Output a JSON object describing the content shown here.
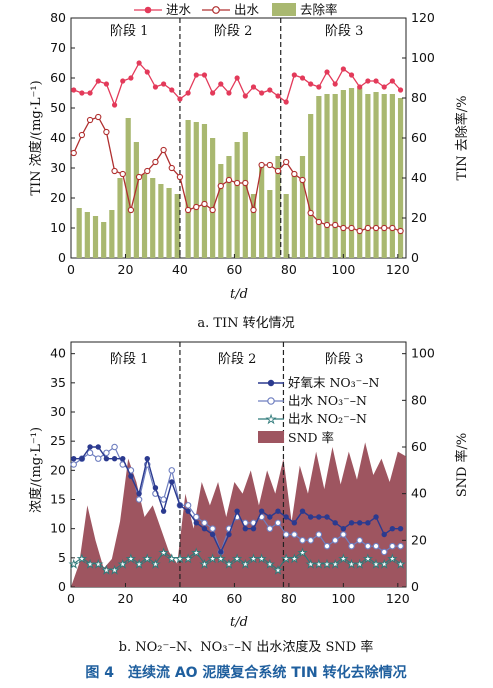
{
  "figure_caption": "图 4　连续流 AO 泥膜复合系统 TIN 转化去除情况",
  "chart_data": [
    {
      "type": "bar",
      "caption": "a. TIN 转化情况",
      "xlabel": "t/d",
      "ylabel_left": "TIN 浓度/(mg·L⁻¹)",
      "ylabel_right": "TIN 去除率/%",
      "xlim": [
        0,
        123
      ],
      "ylim_left": [
        0,
        80
      ],
      "ylim_right": [
        0,
        120
      ],
      "xticks": [
        0,
        20,
        40,
        60,
        80,
        100,
        120
      ],
      "yticks_left": [
        0,
        10,
        20,
        30,
        40,
        50,
        60,
        70,
        80
      ],
      "yticks_right": [
        0,
        20,
        40,
        60,
        80,
        100,
        120
      ],
      "phases": [
        "阶段 1",
        "阶段 2",
        "阶段 3"
      ],
      "phase_boundaries": [
        40,
        77
      ],
      "legend_position": "top",
      "colors": {
        "influent": "#e33a5a",
        "effluent": "#b03030",
        "removal": "#a9b870"
      },
      "series": [
        {
          "name": "进水",
          "kind": "line",
          "axis": "left",
          "x": [
            1,
            4,
            7,
            10,
            13,
            16,
            19,
            22,
            25,
            28,
            31,
            34,
            37,
            40,
            43,
            46,
            49,
            52,
            55,
            58,
            61,
            64,
            67,
            70,
            73,
            76,
            79,
            82,
            85,
            88,
            91,
            94,
            97,
            100,
            103,
            106,
            109,
            112,
            115,
            118,
            121
          ],
          "y": [
            56,
            55,
            55,
            59,
            58,
            51,
            59,
            60,
            65,
            62,
            57,
            58,
            56,
            53,
            55,
            61,
            61,
            55,
            58,
            55,
            60,
            54,
            57,
            55,
            56,
            54,
            52,
            61,
            60,
            58,
            57,
            62,
            58,
            63,
            61,
            57,
            59,
            59,
            57,
            59,
            56
          ]
        },
        {
          "name": "出水",
          "kind": "line",
          "axis": "left",
          "x": [
            1,
            4,
            7,
            10,
            13,
            16,
            19,
            22,
            25,
            28,
            31,
            34,
            37,
            40,
            43,
            46,
            49,
            52,
            55,
            58,
            61,
            64,
            67,
            70,
            73,
            76,
            79,
            82,
            85,
            88,
            91,
            94,
            97,
            100,
            103,
            106,
            109,
            112,
            115,
            118,
            121
          ],
          "y": [
            35,
            41,
            46,
            47,
            42,
            29,
            28,
            16,
            27,
            29,
            32,
            36,
            30,
            27,
            16,
            17,
            18,
            16,
            24,
            26,
            25,
            25,
            16,
            31,
            31,
            29,
            32,
            28,
            26,
            15,
            12,
            11,
            11,
            10,
            10,
            9,
            10,
            10,
            10,
            10,
            9
          ]
        },
        {
          "name": "去除率",
          "kind": "bar",
          "axis": "right",
          "x": [
            3,
            6,
            9,
            12,
            15,
            18,
            21,
            24,
            27,
            30,
            33,
            36,
            39,
            43,
            46,
            49,
            52,
            55,
            58,
            61,
            64,
            67,
            70,
            73,
            76,
            79,
            82,
            85,
            88,
            91,
            94,
            97,
            100,
            103,
            106,
            109,
            112,
            115,
            118,
            121
          ],
          "y": [
            25,
            23,
            21,
            18,
            24,
            40,
            70,
            58,
            42,
            40,
            37,
            35,
            32,
            69,
            68,
            67,
            60,
            47,
            51,
            58,
            63,
            32,
            46,
            34,
            51,
            32,
            42,
            51,
            72,
            81,
            82,
            82,
            84,
            85,
            85,
            82,
            83,
            82,
            82,
            80
          ]
        }
      ]
    },
    {
      "type": "line",
      "caption": "b. NO₂⁻–N、NO₃⁻–N 出水浓度及 SND 率",
      "xlabel": "t/d",
      "ylabel_left": "浓度/(mg·L⁻¹)",
      "ylabel_right": "SND 率/%",
      "xlim": [
        0,
        123
      ],
      "ylim_left": [
        0,
        42
      ],
      "ylim_right": [
        0,
        105
      ],
      "xticks": [
        0,
        20,
        40,
        60,
        80,
        100,
        120
      ],
      "yticks_left": [
        0,
        5,
        10,
        15,
        20,
        25,
        30,
        35,
        40
      ],
      "yticks_right": [
        0,
        20,
        40,
        60,
        80,
        100
      ],
      "phases": [
        "阶段 1",
        "阶段 2",
        "阶段 3"
      ],
      "phase_boundaries": [
        40,
        78
      ],
      "legend_position": "right",
      "colors": {
        "aerobic_no3": "#2b3a8f",
        "effluent_no3": "#6f7fc0",
        "effluent_no2": "#2f7a7a",
        "snd": "#9e5560"
      },
      "series": [
        {
          "name": "好氧末 NO₃⁻–N",
          "kind": "line",
          "axis": "left",
          "x": [
            1,
            4,
            7,
            10,
            13,
            16,
            19,
            22,
            25,
            28,
            31,
            34,
            37,
            40,
            43,
            46,
            49,
            52,
            55,
            58,
            61,
            64,
            67,
            70,
            73,
            76,
            79,
            82,
            85,
            88,
            91,
            94,
            97,
            100,
            103,
            106,
            109,
            112,
            115,
            118,
            121
          ],
          "y": [
            22,
            22,
            24,
            24,
            22,
            22,
            22,
            19,
            16,
            22,
            17,
            13,
            18,
            14,
            13,
            11,
            10,
            9,
            6,
            9,
            13,
            10,
            10,
            13,
            12,
            13,
            12,
            11,
            13,
            12,
            12,
            12,
            11,
            10,
            11,
            11,
            11,
            12,
            9,
            10,
            10
          ]
        },
        {
          "name": "出水 NO₃⁻–N",
          "kind": "line",
          "axis": "left",
          "x": [
            1,
            4,
            7,
            10,
            13,
            16,
            19,
            22,
            25,
            28,
            31,
            34,
            37,
            40,
            43,
            46,
            49,
            52,
            55,
            58,
            61,
            64,
            67,
            70,
            73,
            76,
            79,
            82,
            85,
            88,
            91,
            94,
            97,
            100,
            103,
            106,
            109,
            112,
            115,
            118,
            121
          ],
          "y": [
            21,
            22,
            23,
            22,
            23,
            24,
            21,
            20,
            15,
            21,
            16,
            15,
            20,
            14,
            14,
            12,
            11,
            10,
            6,
            10,
            12,
            11,
            11,
            12,
            10,
            11,
            9,
            9,
            8,
            8,
            9,
            7,
            8,
            9,
            7,
            8,
            7,
            7,
            6,
            7,
            7
          ]
        },
        {
          "name": "出水 NO₂⁻–N",
          "kind": "line",
          "axis": "left",
          "x": [
            1,
            4,
            7,
            10,
            13,
            16,
            19,
            22,
            25,
            28,
            31,
            34,
            37,
            40,
            43,
            46,
            49,
            52,
            55,
            58,
            61,
            64,
            67,
            70,
            73,
            76,
            79,
            82,
            85,
            88,
            91,
            94,
            97,
            100,
            103,
            106,
            109,
            112,
            115,
            118,
            121
          ],
          "y": [
            4,
            5,
            4,
            4,
            3,
            3,
            4,
            5,
            4,
            5,
            4,
            6,
            5,
            5,
            5,
            6,
            4,
            5,
            5,
            4,
            5,
            4,
            5,
            5,
            4,
            3,
            5,
            5,
            6,
            4,
            4,
            4,
            4,
            5,
            4,
            4,
            5,
            4,
            4,
            5,
            4
          ]
        },
        {
          "name": "SND 率",
          "kind": "area",
          "axis": "right",
          "x": [
            0,
            3,
            6,
            9,
            12,
            15,
            18,
            21,
            24,
            27,
            30,
            33,
            36,
            39,
            42,
            45,
            48,
            51,
            54,
            57,
            60,
            63,
            66,
            69,
            72,
            75,
            78,
            81,
            84,
            87,
            90,
            93,
            96,
            99,
            102,
            105,
            108,
            111,
            114,
            117,
            120,
            123
          ],
          "y": [
            0,
            10,
            35,
            20,
            8,
            12,
            28,
            55,
            45,
            30,
            35,
            25,
            15,
            10,
            40,
            25,
            45,
            35,
            45,
            30,
            45,
            40,
            50,
            35,
            50,
            40,
            55,
            28,
            52,
            40,
            58,
            42,
            60,
            44,
            58,
            46,
            62,
            48,
            55,
            45,
            58,
            56
          ]
        }
      ]
    }
  ]
}
